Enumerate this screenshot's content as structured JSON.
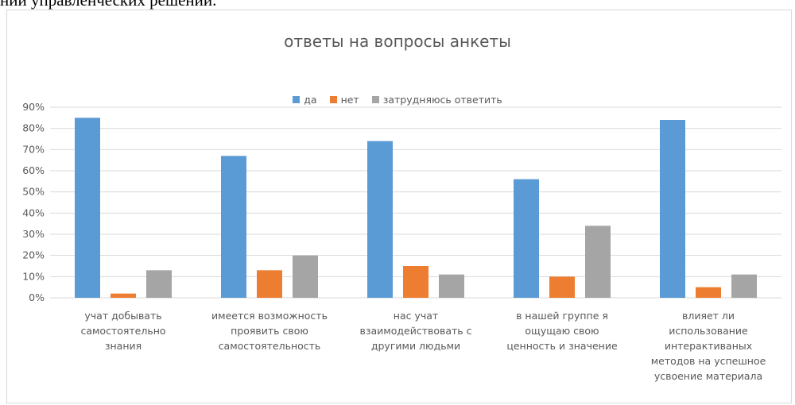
{
  "page": {
    "top_text": "ний управленческих решений."
  },
  "colors": {
    "da": "#5b9bd5",
    "net": "#ed7d31",
    "zatrud": "#a5a5a5",
    "grid": "#d9d9d9",
    "text": "#595959"
  },
  "chart_data": {
    "type": "bar",
    "title": "ответы на вопросы анкеты",
    "xlabel": "",
    "ylabel": "",
    "ylim": [
      0,
      90
    ],
    "grid": true,
    "legend_position": "top",
    "y_ticks": [
      "0%",
      "10%",
      "20%",
      "30%",
      "40%",
      "50%",
      "60%",
      "70%",
      "80%",
      "90%"
    ],
    "categories": [
      [
        "учат добывать",
        "самостоятельно",
        "знания"
      ],
      [
        "имеется возможность",
        "проявить свою",
        "самостоятельность"
      ],
      [
        "нас учат",
        "взаимодействовать с",
        "другими людьми"
      ],
      [
        "в нашей группе я",
        "ощущаю свою",
        "ценность и значение"
      ],
      [
        "влияет ли",
        "использование",
        "интерактиваных",
        "методов на успешное",
        "усвоение материала"
      ]
    ],
    "series": [
      {
        "name": "да",
        "color_key": "da",
        "values": [
          85,
          67,
          74,
          56,
          84
        ]
      },
      {
        "name": "нет",
        "color_key": "net",
        "values": [
          2,
          13,
          15,
          10,
          5
        ]
      },
      {
        "name": "затрудняюсь ответить",
        "color_key": "zatrud",
        "values": [
          13,
          20,
          11,
          34,
          11
        ]
      }
    ]
  }
}
